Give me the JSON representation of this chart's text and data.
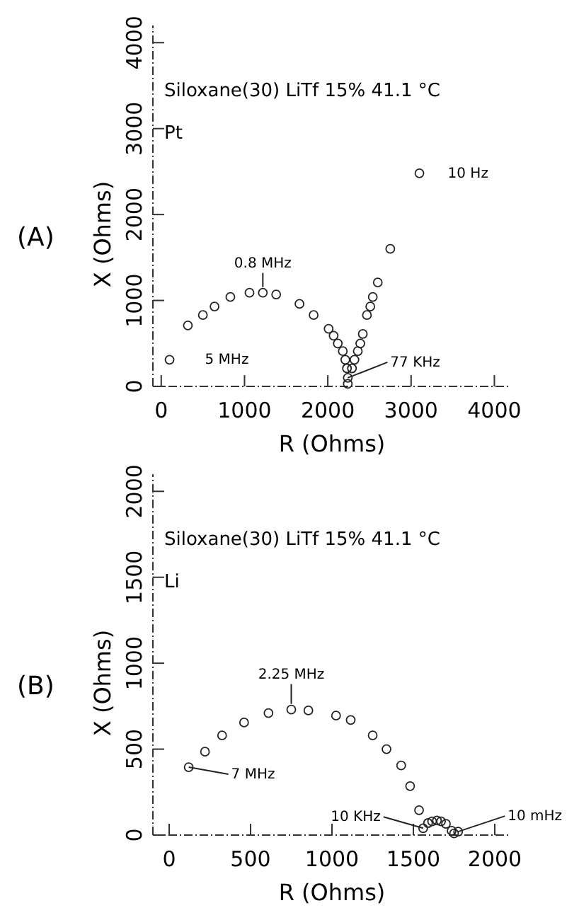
{
  "chart_data": [
    {
      "type": "scatter",
      "title": "Siloxane(30) LiTf 15% 41.1 °C",
      "subtitle": "Pt",
      "xlabel": "R (Ohms)",
      "ylabel": "X (Ohms)",
      "xlim": [
        -100,
        4200
      ],
      "ylim": [
        0,
        4200
      ],
      "xticks": [
        0,
        1000,
        2000,
        3000,
        4000
      ],
      "yticks": [
        0,
        1000,
        2000,
        3000,
        4000
      ],
      "marker": "circle",
      "series": [
        {
          "color": "#222222",
          "x": [
            100,
            320,
            500,
            640,
            830,
            1060,
            1220,
            1380,
            1660,
            1830,
            2010,
            2070,
            2120,
            2180,
            2210,
            2230,
            2240,
            2240,
            2290,
            2320,
            2360,
            2390,
            2420,
            2470,
            2510,
            2540,
            2600,
            2750,
            3100
          ],
          "values": [
            310,
            710,
            830,
            930,
            1040,
            1090,
            1090,
            1070,
            960,
            830,
            670,
            590,
            500,
            410,
            310,
            210,
            100,
            30,
            210,
            310,
            410,
            500,
            610,
            830,
            930,
            1040,
            1210,
            1600,
            2480
          ]
        }
      ],
      "annotations": [
        "(A)",
        {
          "text": "5 MHz",
          "x": 100,
          "y": 310
        },
        {
          "text": "0.8 MHz",
          "x": 1220,
          "y": 1090
        },
        {
          "text": "77 KHz",
          "x": 2240,
          "y": 100
        },
        {
          "text": "10 Hz",
          "x": 3100,
          "y": 2480
        }
      ]
    },
    {
      "type": "scatter",
      "title": "Siloxane(30) LiTf 15% 41.1 °C",
      "subtitle": "Li",
      "xlabel": "R (Ohms)",
      "ylabel": "X (Ohms)",
      "xlim": [
        -100,
        2100
      ],
      "ylim": [
        0,
        2100
      ],
      "xticks": [
        0,
        500,
        1000,
        1500,
        2000
      ],
      "yticks": [
        0,
        500,
        1000,
        1500,
        2000
      ],
      "marker": "circle",
      "series": [
        {
          "color": "#222222",
          "x": [
            120,
            220,
            325,
            460,
            610,
            750,
            855,
            1025,
            1115,
            1250,
            1335,
            1425,
            1480,
            1535,
            1560,
            1590,
            1615,
            1645,
            1670,
            1700,
            1735,
            1750,
            1775
          ],
          "values": [
            395,
            485,
            580,
            655,
            710,
            730,
            725,
            695,
            670,
            580,
            500,
            405,
            285,
            145,
            40,
            70,
            80,
            85,
            80,
            65,
            25,
            10,
            20
          ]
        }
      ],
      "annotations": [
        "(B)",
        {
          "text": "7 MHz",
          "x": 120,
          "y": 395
        },
        {
          "text": "2.25 MHz",
          "x": 750,
          "y": 730
        },
        {
          "text": "10 KHz",
          "x": 1560,
          "y": 40
        },
        {
          "text": "10 mHz",
          "x": 1775,
          "y": 20
        }
      ]
    }
  ]
}
